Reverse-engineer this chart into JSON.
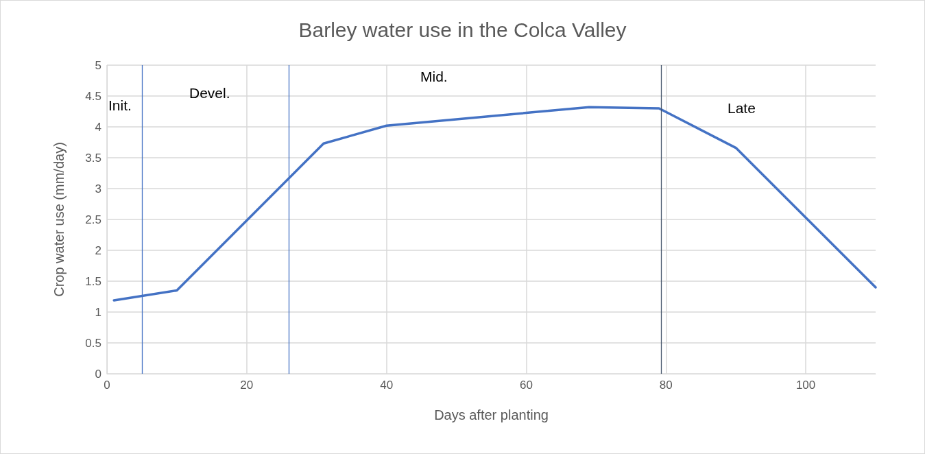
{
  "chart_data": {
    "type": "line",
    "title": "Barley water use in the Colca Valley",
    "xlabel": "Days after planting",
    "ylabel": "Crop water use (mm/day)",
    "x": [
      1,
      10,
      31,
      40,
      69,
      79,
      90,
      110
    ],
    "series": [
      {
        "color": "#4472c4",
        "values": [
          1.19,
          1.35,
          3.73,
          4.02,
          4.32,
          4.3,
          3.66,
          1.4
        ]
      }
    ],
    "xlim": [
      0,
      110
    ],
    "xticks": [
      0,
      20,
      40,
      60,
      80,
      100
    ],
    "ylim": [
      0,
      5
    ],
    "yticks": [
      0,
      0.5,
      1,
      1.5,
      2,
      2.5,
      3,
      3.5,
      4,
      4.5,
      5
    ],
    "grid": true,
    "marker": "none",
    "line_style": "solid",
    "ref_lines": [
      {
        "axis": "x",
        "value": 5,
        "color": "#4472c4"
      },
      {
        "axis": "x",
        "value": 26,
        "color": "#4472c4"
      },
      {
        "axis": "x",
        "value": 79.3,
        "color": "#44546a"
      }
    ],
    "annotations": [
      "Init.",
      "Devel.",
      "Mid.",
      "Late"
    ]
  }
}
